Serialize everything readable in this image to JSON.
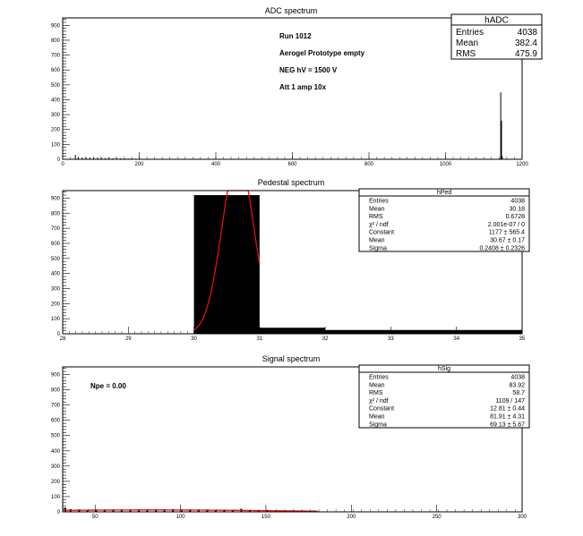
{
  "chart_data": [
    {
      "type": "bar",
      "title": "ADC spectrum",
      "xlim": [
        0,
        1200
      ],
      "ylim": [
        0,
        950
      ],
      "xticks": [
        0,
        200,
        400,
        600,
        800,
        1000,
        1200
      ],
      "yticks": [
        0,
        100,
        200,
        300,
        400,
        500,
        600,
        700,
        800,
        900
      ],
      "annotations": [
        "Run  1012",
        "Aerogel Prototype empty",
        "NEG hV = 1500 V",
        "Att 1 amp 10x"
      ],
      "stats": {
        "name": "hADC",
        "rows": [
          {
            "label": "Entries",
            "value": "4038"
          },
          {
            "label": "Mean",
            "value": "382.4"
          },
          {
            "label": "RMS",
            "value": "475.9"
          }
        ]
      },
      "bins": [
        {
          "x": 32,
          "y": 30
        },
        {
          "x": 40,
          "y": 14
        },
        {
          "x": 50,
          "y": 12
        },
        {
          "x": 60,
          "y": 11
        },
        {
          "x": 70,
          "y": 12
        },
        {
          "x": 80,
          "y": 10
        },
        {
          "x": 90,
          "y": 11
        },
        {
          "x": 100,
          "y": 10
        },
        {
          "x": 110,
          "y": 9
        },
        {
          "x": 120,
          "y": 10
        },
        {
          "x": 130,
          "y": 8
        },
        {
          "x": 140,
          "y": 9
        },
        {
          "x": 150,
          "y": 7
        },
        {
          "x": 160,
          "y": 6
        },
        {
          "x": 170,
          "y": 5
        },
        {
          "x": 180,
          "y": 5
        },
        {
          "x": 190,
          "y": 4
        },
        {
          "x": 200,
          "y": 4
        },
        {
          "x": 220,
          "y": 3
        },
        {
          "x": 240,
          "y": 3
        },
        {
          "x": 260,
          "y": 2
        },
        {
          "x": 300,
          "y": 2
        },
        {
          "x": 350,
          "y": 2
        },
        {
          "x": 400,
          "y": 2
        },
        {
          "x": 450,
          "y": 1
        },
        {
          "x": 500,
          "y": 1
        },
        {
          "x": 550,
          "y": 2
        },
        {
          "x": 600,
          "y": 1
        },
        {
          "x": 650,
          "y": 1
        },
        {
          "x": 700,
          "y": 1
        },
        {
          "x": 750,
          "y": 1
        },
        {
          "x": 800,
          "y": 1
        },
        {
          "x": 850,
          "y": 1
        },
        {
          "x": 900,
          "y": 1
        },
        {
          "x": 950,
          "y": 1
        },
        {
          "x": 1000,
          "y": 1
        },
        {
          "x": 1050,
          "y": 1
        },
        {
          "x": 1100,
          "y": 2
        },
        {
          "x": 1140,
          "y": 5
        },
        {
          "x": 1143,
          "y": 450
        },
        {
          "x": 1145,
          "y": 260
        },
        {
          "x": 1147,
          "y": 20
        }
      ],
      "bin_width": 2
    },
    {
      "type": "bar",
      "title": "Pedestal spectrum",
      "xlim": [
        28,
        35
      ],
      "ylim": [
        0,
        950
      ],
      "xticks": [
        28,
        29,
        30,
        31,
        32,
        33,
        34,
        35
      ],
      "yticks": [
        0,
        100,
        200,
        300,
        400,
        500,
        600,
        700,
        800,
        900
      ],
      "stats": {
        "name": "hPed",
        "rows": [
          {
            "label": "Entries",
            "value": "4038"
          },
          {
            "label": "Mean",
            "value": "30.18"
          },
          {
            "label": "RMS",
            "value": "0.6728"
          },
          {
            "label": "χ² / ndf",
            "value": "2.001e-07 / 0"
          },
          {
            "label": "Constant",
            "value": "1177 ± 565.4"
          },
          {
            "label": "Mean",
            "value": "30.67 ± 0.17"
          },
          {
            "label": "Sigma",
            "value": "0.2408 ± 0.2326"
          }
        ]
      },
      "bins": [
        {
          "x0": 30,
          "x1": 31,
          "y": 920
        },
        {
          "x0": 31,
          "x1": 32,
          "y": 40
        },
        {
          "x0": 32,
          "x1": 35,
          "y": 25
        }
      ],
      "fit": {
        "constant": 1177,
        "mean": 30.67,
        "sigma": 0.2408,
        "range": [
          30,
          31
        ]
      }
    },
    {
      "type": "bar",
      "title": "Signal spectrum",
      "xlim": [
        31,
        300
      ],
      "ylim": [
        0,
        950
      ],
      "xticks": [
        50,
        100,
        150,
        200,
        250,
        300
      ],
      "yticks": [
        0,
        100,
        200,
        300,
        400,
        500,
        600,
        700,
        800,
        900
      ],
      "annotations": [
        "Npe = 0.00"
      ],
      "stats": {
        "name": "hSig",
        "rows": [
          {
            "label": "Entries",
            "value": "4038"
          },
          {
            "label": "Mean",
            "value": "83.92"
          },
          {
            "label": "RMS",
            "value": "58.7"
          },
          {
            "label": "χ² / ndf",
            "value": "1109 / 147"
          },
          {
            "label": "Constant",
            "value": "12.81 ± 0.44"
          },
          {
            "label": "Mean",
            "value": "81.91 ± 4.31"
          },
          {
            "label": "Sigma",
            "value": "69.13 ± 5.67"
          }
        ]
      },
      "bins": [
        {
          "x": 32,
          "y": 28
        },
        {
          "x": 35,
          "y": 18
        },
        {
          "x": 40,
          "y": 16
        },
        {
          "x": 45,
          "y": 14
        },
        {
          "x": 50,
          "y": 14
        },
        {
          "x": 55,
          "y": 12
        },
        {
          "x": 60,
          "y": 14
        },
        {
          "x": 65,
          "y": 11
        },
        {
          "x": 70,
          "y": 12
        },
        {
          "x": 75,
          "y": 10
        },
        {
          "x": 80,
          "y": 11
        },
        {
          "x": 85,
          "y": 12
        },
        {
          "x": 90,
          "y": 10
        },
        {
          "x": 95,
          "y": 18
        },
        {
          "x": 100,
          "y": 11
        },
        {
          "x": 105,
          "y": 10
        },
        {
          "x": 110,
          "y": 9
        },
        {
          "x": 115,
          "y": 10
        },
        {
          "x": 120,
          "y": 9
        },
        {
          "x": 125,
          "y": 8
        },
        {
          "x": 130,
          "y": 9
        },
        {
          "x": 135,
          "y": 20
        },
        {
          "x": 140,
          "y": 8
        },
        {
          "x": 145,
          "y": 7
        },
        {
          "x": 150,
          "y": 8
        },
        {
          "x": 155,
          "y": 6
        },
        {
          "x": 160,
          "y": 6
        },
        {
          "x": 165,
          "y": 5
        },
        {
          "x": 170,
          "y": 5
        },
        {
          "x": 175,
          "y": 4
        },
        {
          "x": 180,
          "y": 4
        },
        {
          "x": 190,
          "y": 3
        },
        {
          "x": 200,
          "y": 3
        },
        {
          "x": 210,
          "y": 2
        },
        {
          "x": 220,
          "y": 2
        },
        {
          "x": 230,
          "y": 2
        },
        {
          "x": 240,
          "y": 1
        },
        {
          "x": 250,
          "y": 1
        },
        {
          "x": 260,
          "y": 1
        },
        {
          "x": 270,
          "y": 1
        },
        {
          "x": 280,
          "y": 1
        },
        {
          "x": 290,
          "y": 1
        }
      ],
      "bin_width": 1,
      "fit": {
        "constant": 12.81,
        "mean": 81.91,
        "sigma": 69.13,
        "range": [
          31,
          180
        ]
      }
    }
  ]
}
